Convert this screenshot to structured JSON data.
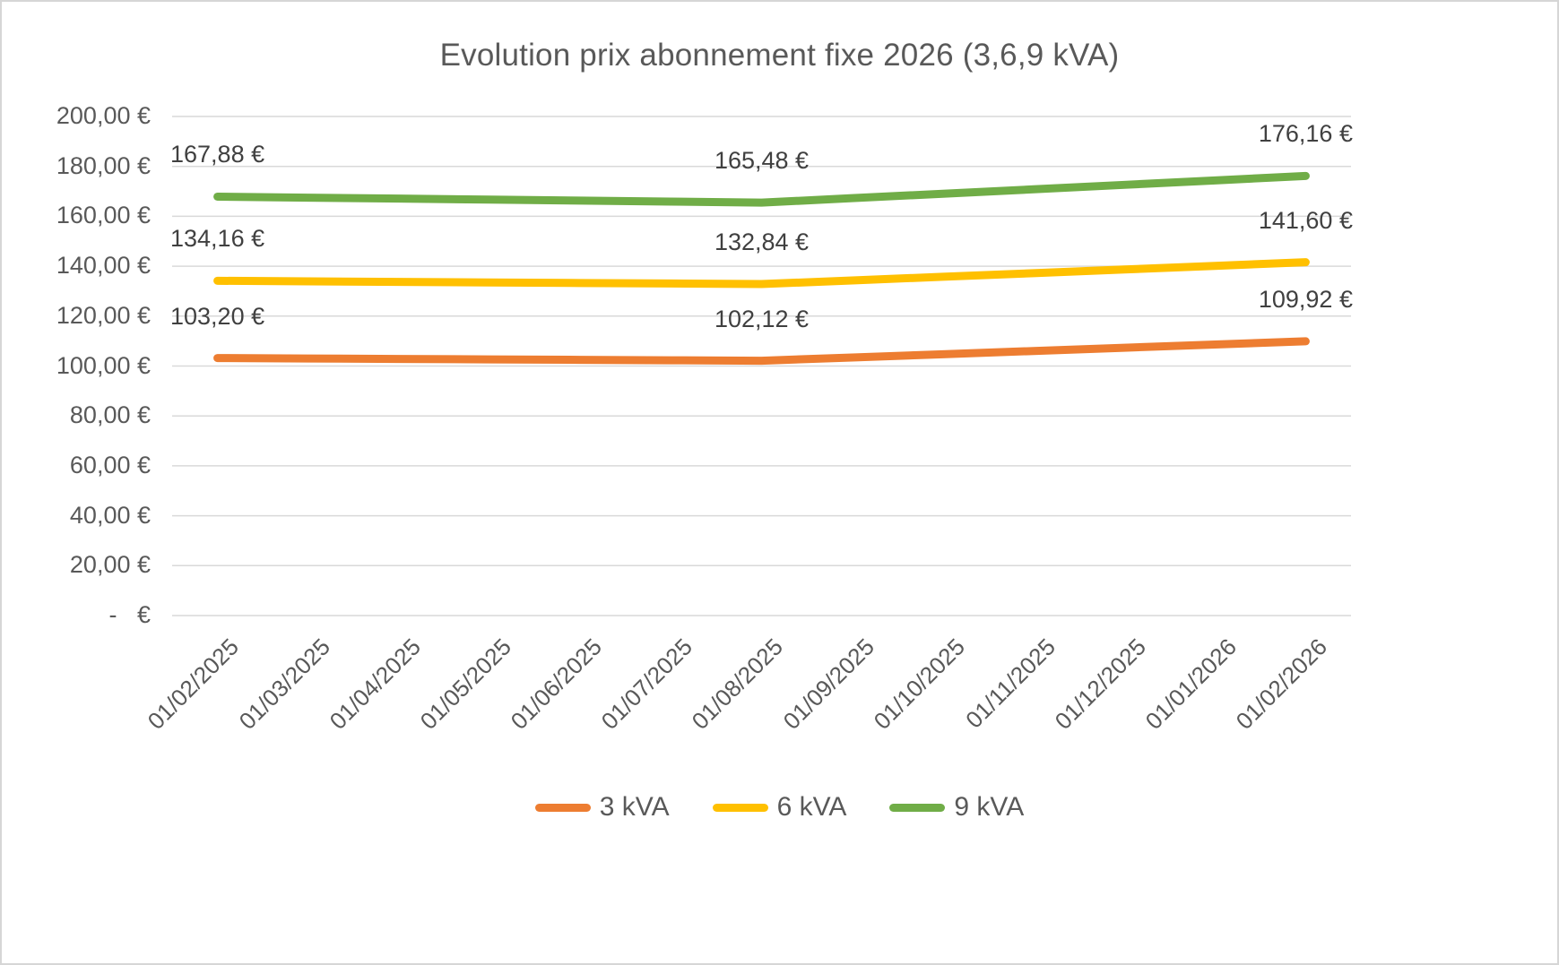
{
  "title": "Evolution prix abonnement fixe 2026 (3,6,9 kVA)",
  "chart_data": {
    "type": "line",
    "title": "Evolution prix abonnement fixe 2026 (3,6,9 kVA)",
    "x": [
      "01/02/2025",
      "01/03/2025",
      "01/04/2025",
      "01/05/2025",
      "01/06/2025",
      "01/07/2025",
      "01/08/2025",
      "01/09/2025",
      "01/10/2025",
      "01/11/2025",
      "01/12/2025",
      "01/01/2026",
      "01/02/2026"
    ],
    "series": [
      {
        "name": "3 kVA",
        "color": "#ED7D31",
        "values": [
          103.2,
          103.02,
          102.84,
          102.66,
          102.48,
          102.3,
          102.12,
          103.42,
          104.72,
          106.02,
          107.32,
          108.62,
          109.92
        ],
        "data_labels": [
          {
            "index": 0,
            "text": "103,20 €"
          },
          {
            "index": 6,
            "text": "102,12 €"
          },
          {
            "index": 12,
            "text": "109,92 €"
          }
        ]
      },
      {
        "name": "6 kVA",
        "color": "#FFC000",
        "values": [
          134.16,
          133.94,
          133.72,
          133.5,
          133.28,
          133.06,
          132.84,
          134.3,
          135.76,
          137.22,
          138.68,
          140.14,
          141.6
        ],
        "data_labels": [
          {
            "index": 0,
            "text": "134,16 €"
          },
          {
            "index": 6,
            "text": "132,84 €"
          },
          {
            "index": 12,
            "text": "141,60 €"
          }
        ]
      },
      {
        "name": "9 kVA",
        "color": "#70AD47",
        "values": [
          167.88,
          167.48,
          167.08,
          166.68,
          166.28,
          165.88,
          165.48,
          167.26,
          169.04,
          170.82,
          172.6,
          174.38,
          176.16
        ],
        "data_labels": [
          {
            "index": 0,
            "text": "167,88 €"
          },
          {
            "index": 6,
            "text": "165,48 €"
          },
          {
            "index": 12,
            "text": "176,16 €"
          }
        ]
      }
    ],
    "ylim": [
      0,
      200
    ],
    "ytick_step": 20,
    "ytick_labels": [
      "-   €",
      "20,00 €",
      "40,00 €",
      "60,00 €",
      "80,00 €",
      "100,00 €",
      "120,00 €",
      "140,00 €",
      "160,00 €",
      "180,00 €",
      "200,00 €"
    ],
    "grid": true,
    "grid_color": "#D9D9D9",
    "axis_text_color": "#595959",
    "data_label_color": "#404040",
    "legend_position": "bottom"
  }
}
